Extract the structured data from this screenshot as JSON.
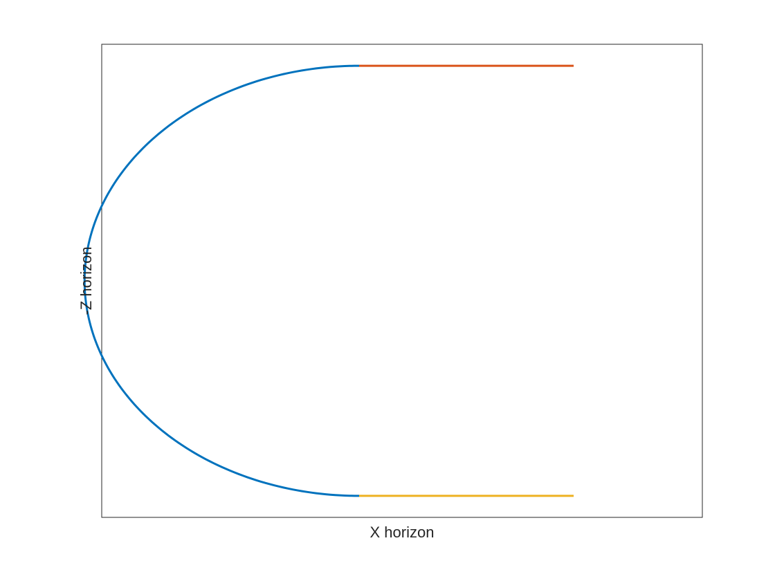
{
  "chart_data": {
    "type": "line",
    "title": "",
    "xlabel": "X horizon",
    "ylabel": "-Z horizon",
    "xlim": [
      -1.2,
      1.6
    ],
    "ylim": [
      -1.1,
      1.1
    ],
    "grid": false,
    "ticks_visible": false,
    "legend": "none",
    "series": [
      {
        "color": "#0072BD",
        "curve": "half-ellipse",
        "center": [
          0,
          0
        ],
        "radius_x": 1.28,
        "radius_y": 1.0,
        "theta_start_deg": 90,
        "theta_end_deg": 270,
        "x": [
          0,
          -0.64,
          -1.109,
          -1.28,
          -1.109,
          -0.64,
          0
        ],
        "y": [
          1,
          0.866,
          0.5,
          0,
          -0.5,
          -0.866,
          -1
        ]
      },
      {
        "color": "#D95319",
        "x": [
          0,
          1.0
        ],
        "y": [
          1,
          1
        ]
      },
      {
        "color": "#EDB120",
        "x": [
          0,
          1.0
        ],
        "y": [
          -1,
          -1
        ]
      }
    ]
  }
}
